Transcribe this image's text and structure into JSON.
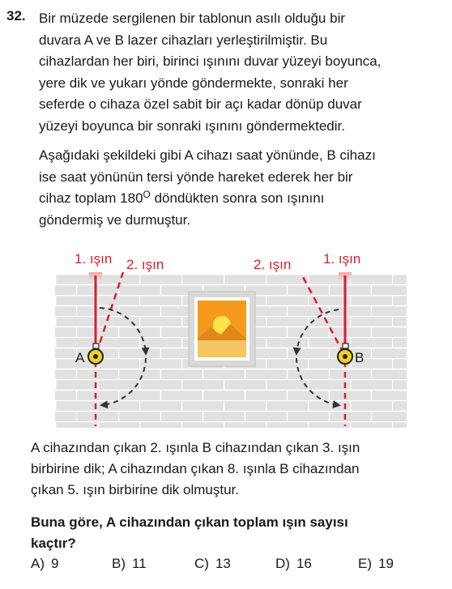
{
  "question": {
    "number": "32.",
    "stem_lines": [
      "Bir müzede sergilenen bir tablonun asılı olduğu bir",
      "duvara A ve B lazer cihazları yerleştirilmiştir. Bu",
      "cihazlardan her biri, birinci ışınını duvar yüzeyi boyunca,",
      "yere dik ve yukarı yönde göndermekte, sonraki her",
      "seferde o cihaza özel sabit bir açı kadar dönüp duvar",
      "yüzeyi boyunca bir sonraki ışınını göndermektedir."
    ],
    "paragraph2": {
      "line1": "Aşağıdaki şekildeki gibi A cihazı saat yönünde, B cihazı",
      "line2": "ise saat yönünün tersi yönde hareket ederek her bir",
      "line3_before": "cihaz toplam 180",
      "line3_sup": "O",
      "line3_after": " döndükten sonra son ışınını",
      "line4": "göndermiş ve durmuştur."
    },
    "figure": {
      "left_ray1_label": "1. ışın",
      "left_ray2_label": "2. ışın",
      "right_ray2_label": "2. ışın",
      "right_ray1_label": "1. ışın",
      "device_a_label": "A",
      "device_b_label": "B",
      "colors": {
        "ray": "#d7202b",
        "wall": "#e1e1e1",
        "brick_line": "#ffffff",
        "device": "#f3d21a",
        "arrow": "#333333",
        "frame": "#d9d9d9",
        "sky": "#f59a1c",
        "sun": "#ffe34d",
        "hills": "#e0871a"
      },
      "icons": [
        "laser-device-icon",
        "painting-icon",
        "curved-arrow-icon"
      ]
    },
    "after_lines": [
      "A cihazından çıkan 2. ışınla B cihazından çıkan 3. ışın",
      "birbirine dik; A cihazından çıkan 8. ışınla B cihazından",
      "çıkan 5. ışın birbirine dik olmuştur."
    ],
    "prompt_lines": [
      "Buna göre, A cihazından çıkan toplam ışın sayısı",
      "kaçtır?"
    ],
    "options": [
      {
        "label": "A)",
        "value": "9"
      },
      {
        "label": "B)",
        "value": "11"
      },
      {
        "label": "C)",
        "value": "13"
      },
      {
        "label": "D)",
        "value": "16"
      },
      {
        "label": "E)",
        "value": "19"
      }
    ]
  }
}
